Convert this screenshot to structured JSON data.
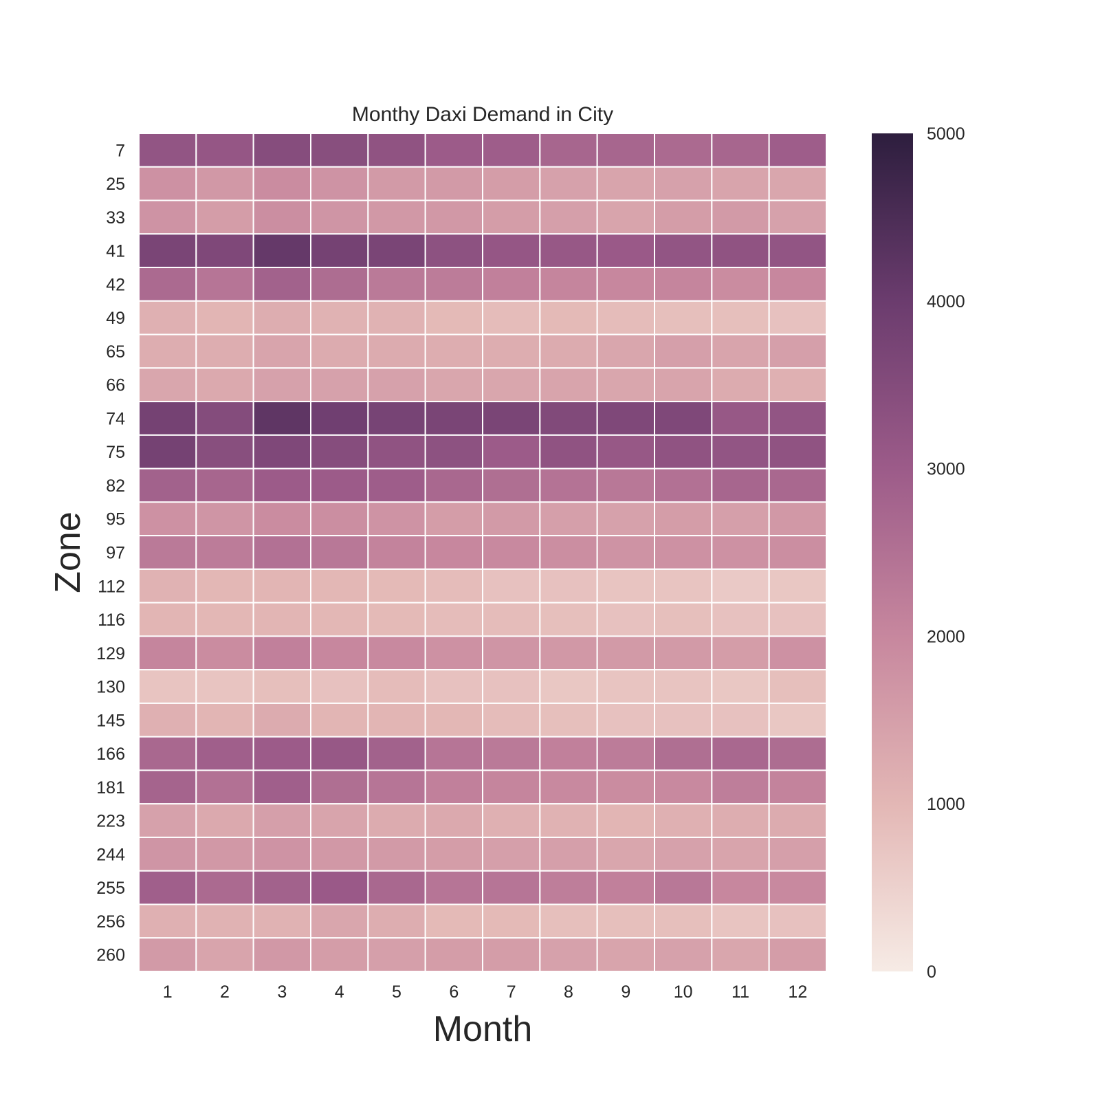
{
  "chart_data": {
    "type": "heatmap",
    "title": "Monthy Daxi Demand in City",
    "xlabel": "Month",
    "ylabel": "Zone",
    "x": [
      "1",
      "2",
      "3",
      "4",
      "5",
      "6",
      "7",
      "8",
      "9",
      "10",
      "11",
      "12"
    ],
    "y": [
      "7",
      "25",
      "33",
      "41",
      "42",
      "49",
      "65",
      "66",
      "74",
      "75",
      "82",
      "95",
      "97",
      "112",
      "116",
      "129",
      "130",
      "145",
      "166",
      "181",
      "223",
      "244",
      "255",
      "256",
      "260"
    ],
    "values": [
      [
        3200,
        3150,
        3450,
        3400,
        3250,
        3000,
        2950,
        2750,
        2750,
        2650,
        2750,
        2950
      ],
      [
        1800,
        1650,
        1900,
        1750,
        1600,
        1600,
        1550,
        1450,
        1400,
        1450,
        1400,
        1350
      ],
      [
        1750,
        1550,
        1850,
        1700,
        1650,
        1650,
        1550,
        1500,
        1400,
        1550,
        1600,
        1450
      ],
      [
        3700,
        3600,
        4100,
        3800,
        3700,
        3300,
        3150,
        3100,
        3050,
        3200,
        3250,
        3200
      ],
      [
        2650,
        2400,
        2850,
        2600,
        2300,
        2250,
        2150,
        2050,
        2000,
        2050,
        1900,
        2000
      ],
      [
        1150,
        1050,
        1200,
        1100,
        1100,
        950,
        900,
        950,
        900,
        850,
        850,
        800
      ],
      [
        1200,
        1200,
        1400,
        1250,
        1250,
        1200,
        1200,
        1250,
        1350,
        1500,
        1400,
        1500
      ],
      [
        1350,
        1300,
        1450,
        1450,
        1450,
        1350,
        1350,
        1400,
        1350,
        1400,
        1250,
        1150
      ],
      [
        3800,
        3500,
        4200,
        3900,
        3750,
        3700,
        3700,
        3550,
        3600,
        3600,
        3100,
        3200
      ],
      [
        3800,
        3400,
        3600,
        3450,
        3250,
        3300,
        3000,
        3250,
        3100,
        3250,
        3200,
        3250
      ],
      [
        2850,
        2750,
        3000,
        3000,
        2950,
        2700,
        2550,
        2450,
        2350,
        2500,
        2750,
        2700
      ],
      [
        1800,
        1700,
        1900,
        1850,
        1750,
        1550,
        1600,
        1500,
        1450,
        1550,
        1500,
        1650
      ],
      [
        2300,
        2250,
        2500,
        2350,
        2100,
        2000,
        1950,
        1850,
        1750,
        1800,
        1800,
        1850
      ],
      [
        1100,
        1000,
        1050,
        1000,
        950,
        900,
        800,
        800,
        750,
        750,
        650,
        700
      ],
      [
        1050,
        1000,
        1050,
        1000,
        950,
        900,
        900,
        850,
        800,
        850,
        800,
        800
      ],
      [
        2050,
        1900,
        2150,
        2000,
        1950,
        1800,
        1700,
        1650,
        1600,
        1600,
        1550,
        1800
      ],
      [
        750,
        750,
        850,
        800,
        900,
        800,
        800,
        700,
        750,
        750,
        700,
        850
      ],
      [
        1150,
        1050,
        1250,
        1050,
        1050,
        1000,
        900,
        850,
        800,
        800,
        800,
        700
      ],
      [
        2700,
        2900,
        3000,
        3100,
        2850,
        2400,
        2300,
        2150,
        2250,
        2550,
        2700,
        2600
      ],
      [
        2800,
        2500,
        2900,
        2550,
        2400,
        2150,
        2050,
        1950,
        1900,
        1950,
        2200,
        2100
      ],
      [
        1450,
        1300,
        1500,
        1400,
        1250,
        1300,
        1150,
        1100,
        1050,
        1150,
        1200,
        1250
      ],
      [
        1700,
        1650,
        1750,
        1650,
        1600,
        1550,
        1500,
        1500,
        1350,
        1450,
        1400,
        1500
      ],
      [
        2900,
        2650,
        2850,
        3050,
        2700,
        2400,
        2400,
        2200,
        2150,
        2350,
        2000,
        1950
      ],
      [
        1150,
        1100,
        1100,
        1350,
        1200,
        950,
        950,
        850,
        850,
        850,
        750,
        800
      ],
      [
        1600,
        1400,
        1650,
        1550,
        1500,
        1550,
        1550,
        1450,
        1400,
        1450,
        1350,
        1550
      ]
    ],
    "colorbar": {
      "min": 0,
      "max": 5000,
      "ticks": [
        0,
        1000,
        2000,
        3000,
        4000,
        5000
      ]
    },
    "colormap": [
      "#f6ebe5",
      "#e3b7b5",
      "#c7879e",
      "#9c5b89",
      "#6b3c6e",
      "#2d1e3e"
    ],
    "grid": false
  }
}
